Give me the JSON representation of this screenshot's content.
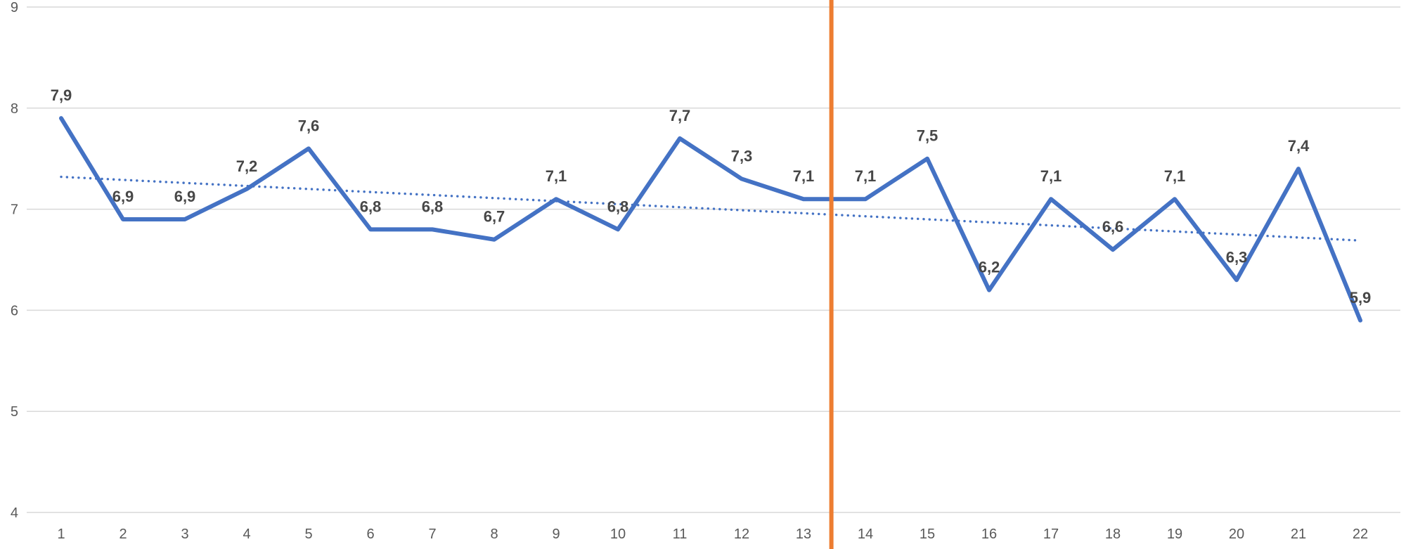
{
  "chart_data": {
    "type": "line",
    "title": "",
    "legend": "none",
    "grid": {
      "visible": true,
      "color": "#d9d9d9"
    },
    "background": "#ffffff",
    "categories": [
      "1",
      "2",
      "3",
      "4",
      "5",
      "6",
      "7",
      "8",
      "9",
      "10",
      "11",
      "12",
      "13",
      "14",
      "15",
      "16",
      "17",
      "18",
      "19",
      "20",
      "21",
      "22"
    ],
    "series": [
      {
        "name": "series-1",
        "color": "#4472C4",
        "values": [
          7.9,
          6.9,
          6.9,
          7.2,
          7.6,
          6.8,
          6.8,
          6.7,
          7.1,
          6.8,
          7.7,
          7.3,
          7.1,
          7.1,
          7.5,
          6.2,
          7.1,
          6.6,
          7.1,
          6.3,
          7.4,
          5.9
        ],
        "data_labels": [
          "7,9",
          "6,9",
          "6,9",
          "7,2",
          "7,6",
          "6,8",
          "6,8",
          "6,7",
          "7,1",
          "6,8",
          "7,7",
          "7,3",
          "7,1",
          "7,1",
          "7,5",
          "6,2",
          "7,1",
          "6,6",
          "7,1",
          "6,3",
          "7,4",
          "5,9"
        ]
      }
    ],
    "trendline": {
      "type": "linear",
      "style": "dotted",
      "color": "#4472C4",
      "start_value": 7.32,
      "end_value": 6.69
    },
    "vertical_marker": {
      "color": "#ED7D31",
      "position": 13.45,
      "between_categories": [
        "13",
        "14"
      ]
    },
    "y_axis": {
      "min": 4,
      "max": 9,
      "ticks": [
        "9",
        "8",
        "7",
        "6",
        "5",
        "4"
      ],
      "label_color": "#595959"
    },
    "x_axis": {
      "label_color": "#595959"
    },
    "data_label_color": "#474747"
  }
}
